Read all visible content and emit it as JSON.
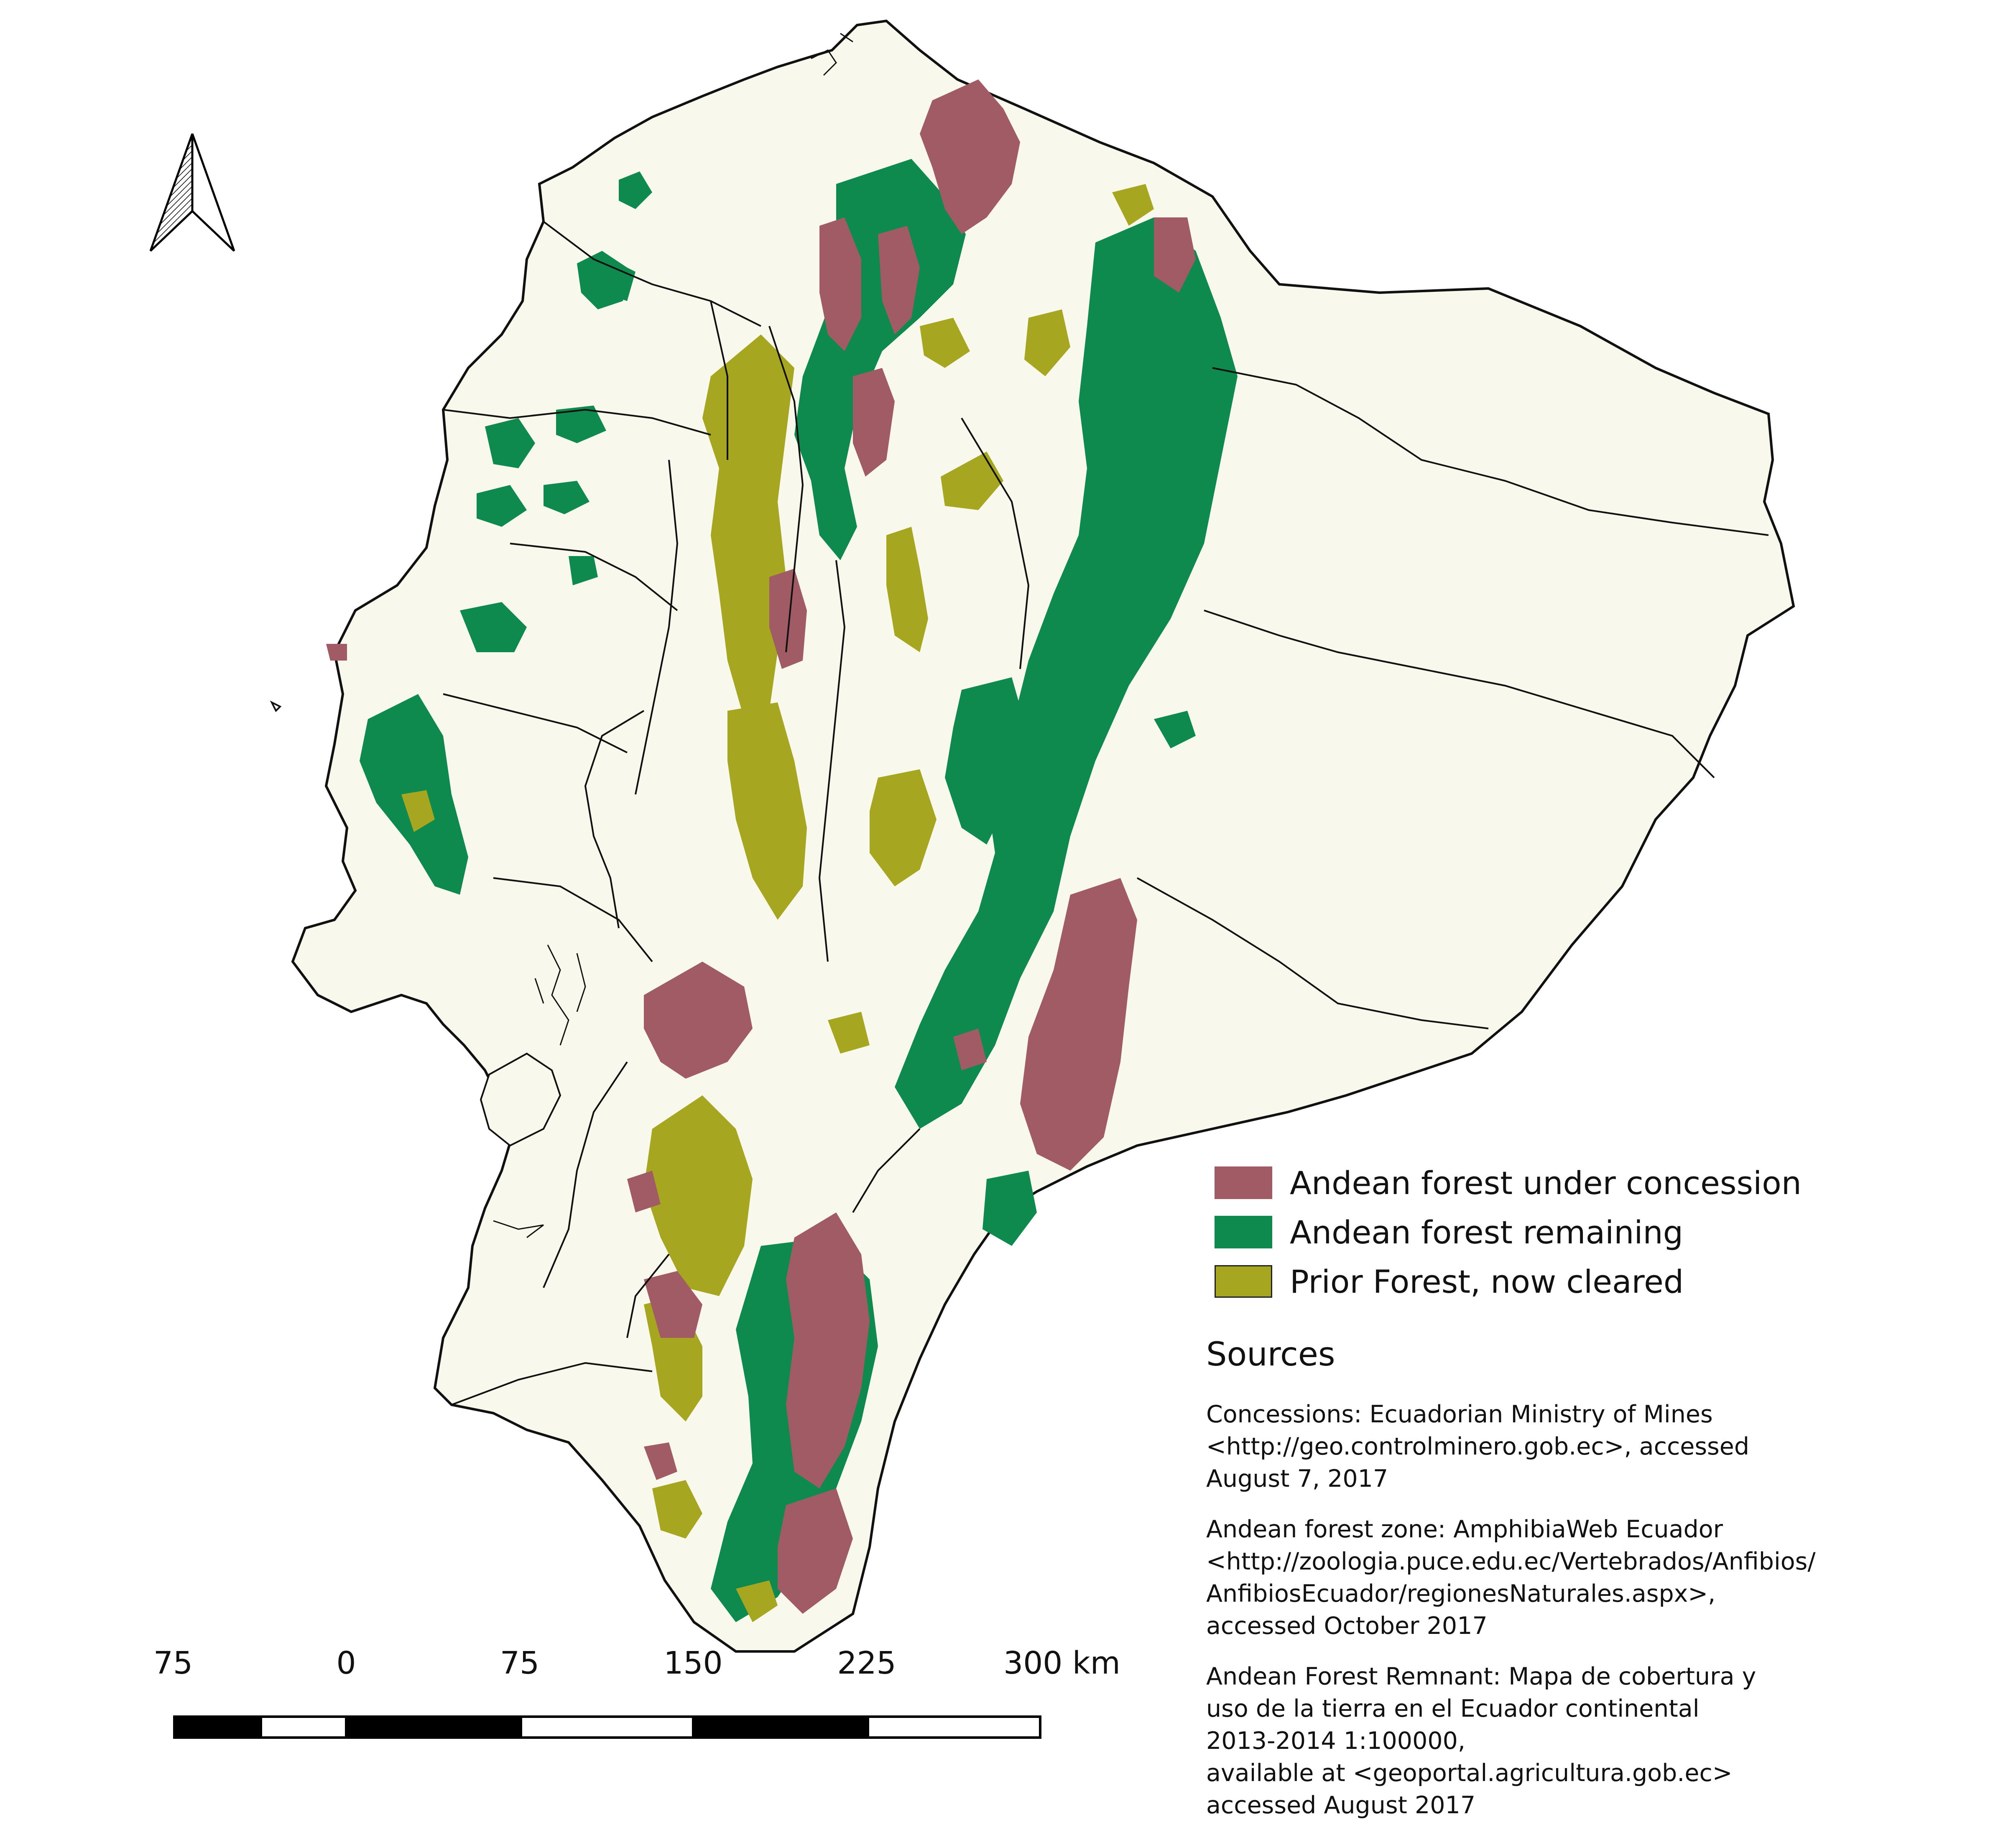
{
  "legend": {
    "items": [
      {
        "label": "Andean forest under concession",
        "color": "#a15b64"
      },
      {
        "label": "Andean forest remaining",
        "color": "#0e8a4f"
      },
      {
        "label": "Prior Forest, now cleared",
        "color": "#a6a620"
      }
    ]
  },
  "sources": {
    "title": "Sources",
    "entries": [
      {
        "text": "Concessions:  Ecuadorian Ministry of Mines\n<http://geo.controlminero.gob.ec>, accessed\nAugust 7, 2017"
      },
      {
        "text": "Andean forest zone: AmphibiaWeb Ecuador\n<http://zoologia.puce.edu.ec/Vertebrados/Anfibios/\nAnfibiosEcuador/regionesNaturales.aspx>,\naccessed October 2017"
      },
      {
        "text": "Andean Forest Remnant: Mapa de cobertura y\nuso de la tierra en el Ecuador continental\n2013-2014 1:100000,\navailable at <geoportal.agricultura.gob.ec>\naccessed August 2017"
      }
    ]
  },
  "scale_bar": {
    "labels": [
      "75",
      "0",
      "75",
      "150",
      "225",
      "300 km"
    ]
  },
  "map": {
    "land_color": "#f8f9ec",
    "border_color": "#111111",
    "north_arrow_icon": "north-arrow-icon"
  }
}
